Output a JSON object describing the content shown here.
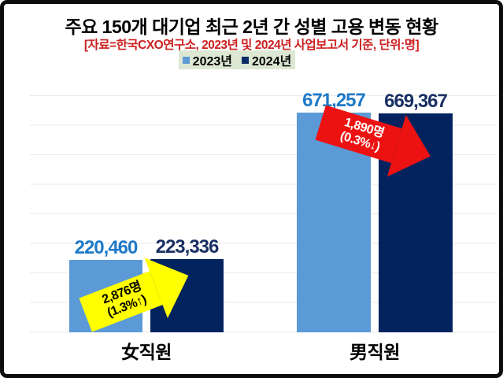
{
  "header": {
    "title": "주요 150개 대기업 최근 2년 간 성별 고용 변동 현황",
    "source_note": "[자료=한국CXO연구소, 2023년 및 2024년 사업보고서 기준, 단위:명]",
    "title_color": "#000000",
    "source_color": "#cc2020"
  },
  "legend": {
    "background": "#dce8d3",
    "items": [
      {
        "label": "2023년",
        "color": "#5b9ad6"
      },
      {
        "label": "2024년",
        "color": "#0b2d6b"
      }
    ]
  },
  "chart_data": {
    "type": "bar",
    "title": "주요 150개 대기업 최근 2년 간 성별 고용 변동 현황",
    "source": "[자료=한국CXO연구소, 2023년 및 2024년 사업보고서 기준, 단위:명]",
    "categories": [
      "女직원",
      "男직원"
    ],
    "series": [
      {
        "name": "2023년",
        "color": "#5b9ad6",
        "label_color": "#1e7ac8",
        "values": [
          220460,
          671257
        ],
        "value_labels": [
          "220,460",
          "671,257"
        ]
      },
      {
        "name": "2024년",
        "color": "#03235f",
        "label_color": "#1a3063",
        "values": [
          223336,
          669367
        ],
        "value_labels": [
          "223,336",
          "669,367"
        ]
      }
    ],
    "ylim": [
      0,
      700000
    ],
    "grid": true,
    "legend_position": "top",
    "annotations": [
      {
        "target": "女직원",
        "line1": "2,876명",
        "line2": "(1.3%↑)",
        "direction": "up-right",
        "arrow_color": "#ffff00",
        "text_color": "#000000"
      },
      {
        "target": "男직원",
        "line1": "1,890명",
        "line2": "(0.3%↓)",
        "direction": "down-right",
        "arrow_color": "#ec1212",
        "text_color": "#ffffff"
      }
    ]
  }
}
